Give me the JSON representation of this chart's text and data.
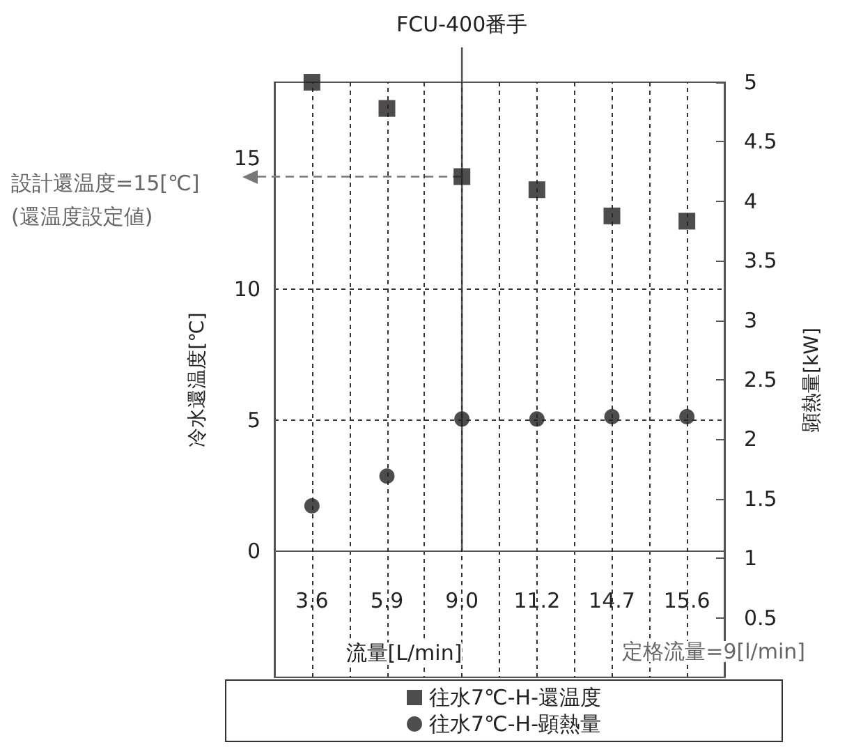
{
  "chart_data": {
    "type": "scatter",
    "categories": [
      "3.6",
      "5.9",
      "9.0",
      "11.2",
      "14.7",
      "15.6"
    ],
    "series": [
      {
        "name": "往水7℃-H-還温度",
        "color": "#231f20",
        "marker": "square",
        "values": [
          17.9,
          16.9,
          14.3,
          13.8,
          12.8,
          12.6
        ]
      },
      {
        "name": "往水7℃-H-顕熱量",
        "color": "#231f20",
        "marker": "circle",
        "axis": "y2",
        "values": [
          1.44,
          1.69,
          2.17,
          2.17,
          2.19,
          2.19
        ]
      }
    ],
    "xlabel": "流量[L/min]",
    "ylabel": "冷水還温度[℃]",
    "y2label": "顕熱量[kW]",
    "ylim": [
      -4.8,
      17.9
    ],
    "yticks": [
      0,
      5,
      10,
      15
    ],
    "y2lim": [
      0,
      5
    ],
    "y2ticks": [
      0.5,
      1,
      1.5,
      2,
      2.5,
      3,
      3.5,
      4,
      4.5,
      5
    ],
    "ref_lines": [
      {
        "axis": "x",
        "value": "9.0",
        "label": "FCU-400番手",
        "color": "#555555",
        "line_style": "solid"
      },
      {
        "axis": "y",
        "value": 14.3,
        "color": "#777777",
        "line_style": "dashed"
      }
    ],
    "annotations": [
      "設計還温度=15[℃]",
      "(還温度設定値)",
      "定格流量=9[l/min]"
    ],
    "grid": true,
    "legend": "bottom"
  }
}
